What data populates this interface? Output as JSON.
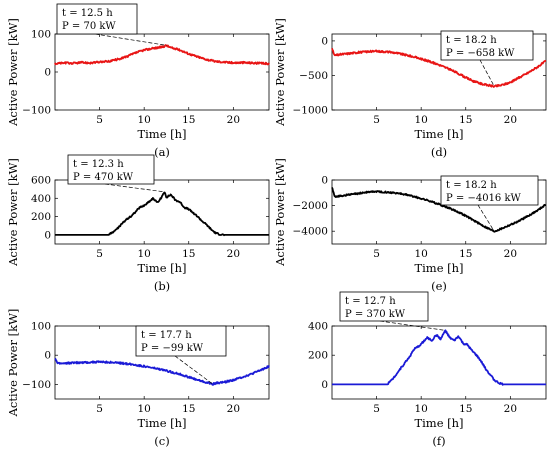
{
  "chart_data": [
    {
      "id": "a",
      "type": "line",
      "caption": "(a)",
      "color": "#e81515",
      "xlabel": "Time [h]",
      "ylabel": "Active Power [kW]",
      "xlim": [
        0,
        24
      ],
      "ylim": [
        -100,
        100
      ],
      "xticks": [
        5,
        10,
        15,
        20
      ],
      "yticks": [
        -100,
        0,
        100
      ],
      "x": [
        0,
        1,
        2,
        3,
        4,
        5,
        6,
        7,
        8,
        9,
        10,
        11,
        12,
        12.5,
        13,
        14,
        15,
        16,
        17,
        18,
        19,
        20,
        21,
        22,
        23,
        24
      ],
      "y": [
        22,
        24,
        23,
        25,
        24,
        26,
        28,
        33,
        40,
        50,
        58,
        62,
        66,
        70,
        64,
        58,
        48,
        40,
        33,
        28,
        26,
        24,
        25,
        24,
        23,
        22
      ],
      "annotation": {
        "t": "t = 12.5 h",
        "p": "P = 70 kW",
        "x": 12.5,
        "y": 70
      }
    },
    {
      "id": "b",
      "type": "line",
      "caption": "(b)",
      "color": "#000000",
      "xlabel": "Time [h]",
      "ylabel": "Active Power [kW]",
      "xlim": [
        0,
        24
      ],
      "ylim": [
        -100,
        600
      ],
      "xticks": [
        5,
        10,
        15,
        20
      ],
      "yticks": [
        0,
        200,
        400,
        600
      ],
      "x": [
        0,
        6,
        6.5,
        7,
        7.5,
        8,
        8.5,
        9,
        9.5,
        10,
        10.5,
        11,
        11.5,
        12,
        12.3,
        12.5,
        13,
        13.5,
        14,
        14.5,
        15,
        15.5,
        16,
        16.5,
        17,
        17.5,
        18,
        18.5,
        19,
        24
      ],
      "y": [
        0,
        0,
        30,
        70,
        120,
        170,
        200,
        250,
        300,
        320,
        360,
        400,
        350,
        420,
        470,
        410,
        440,
        380,
        360,
        300,
        280,
        240,
        200,
        150,
        110,
        60,
        20,
        5,
        0,
        0
      ],
      "annotation": {
        "t": "t = 12.3 h",
        "p": "P = 470 kW",
        "x": 12.3,
        "y": 470
      }
    },
    {
      "id": "c",
      "type": "line",
      "caption": "(c)",
      "color": "#1a1ad6",
      "xlabel": "Time [h]",
      "ylabel": "Active Power [kW]",
      "xlim": [
        0,
        24
      ],
      "ylim": [
        -150,
        100
      ],
      "xticks": [
        5,
        10,
        15,
        20
      ],
      "yticks": [
        -100,
        0,
        100
      ],
      "x": [
        0,
        0.3,
        1,
        2,
        3,
        4,
        5,
        6,
        7,
        8,
        9,
        10,
        11,
        12,
        13,
        14,
        15,
        16,
        17,
        17.7,
        18,
        19,
        20,
        21,
        22,
        23,
        24
      ],
      "y": [
        -10,
        -28,
        -28,
        -26,
        -25,
        -24,
        -23,
        -24,
        -26,
        -29,
        -33,
        -38,
        -44,
        -50,
        -57,
        -65,
        -75,
        -85,
        -94,
        -99,
        -96,
        -92,
        -85,
        -75,
        -65,
        -52,
        -38
      ],
      "annotation": {
        "t": "t = 17.7 h",
        "p": "P = −99 kW",
        "x": 17.7,
        "y": -99
      }
    },
    {
      "id": "d",
      "type": "line",
      "caption": "(d)",
      "color": "#e81515",
      "xlabel": "Time [h]",
      "ylabel": "Active Power [kW]",
      "xlim": [
        0,
        24
      ],
      "ylim": [
        -1000,
        100
      ],
      "xticks": [
        5,
        10,
        15,
        20
      ],
      "yticks": [
        -1000,
        -500,
        0
      ],
      "x": [
        0,
        0.3,
        1,
        2,
        3,
        4,
        5,
        6,
        7,
        8,
        9,
        10,
        11,
        12,
        13,
        14,
        15,
        16,
        17,
        18.2,
        19,
        20,
        21,
        22,
        23,
        24
      ],
      "y": [
        -120,
        -210,
        -195,
        -180,
        -165,
        -155,
        -150,
        -155,
        -170,
        -195,
        -225,
        -260,
        -300,
        -345,
        -400,
        -460,
        -530,
        -590,
        -630,
        -658,
        -640,
        -600,
        -530,
        -460,
        -380,
        -290
      ],
      "annotation": {
        "t": "t = 18.2 h",
        "p": "P = −658 kW",
        "x": 18.2,
        "y": -658
      }
    },
    {
      "id": "e",
      "type": "line",
      "caption": "(e)",
      "color": "#000000",
      "xlabel": "Time [h]",
      "ylabel": "Active Power [kW]",
      "xlim": [
        0,
        24
      ],
      "ylim": [
        -5000,
        0
      ],
      "xticks": [
        5,
        10,
        15,
        20
      ],
      "yticks": [
        -4000,
        -2000,
        0
      ],
      "x": [
        0,
        0.3,
        1,
        2,
        3,
        4,
        5,
        6,
        7,
        8,
        9,
        10,
        11,
        12,
        13,
        14,
        15,
        16,
        17,
        18.2,
        19,
        20,
        21,
        22,
        23,
        24
      ],
      "y": [
        -600,
        -1300,
        -1250,
        -1150,
        -1050,
        -950,
        -900,
        -950,
        -1000,
        -1100,
        -1250,
        -1450,
        -1650,
        -1900,
        -2150,
        -2450,
        -2800,
        -3200,
        -3600,
        -4016,
        -3800,
        -3500,
        -3200,
        -2800,
        -2400,
        -1900
      ],
      "annotation": {
        "t": "t = 18.2 h",
        "p": "P = −4016 kW",
        "x": 18.2,
        "y": -4016
      }
    },
    {
      "id": "f",
      "type": "line",
      "caption": "(f)",
      "color": "#1a1ad6",
      "xlabel": "Time [h]",
      "ylabel": "",
      "xlim": [
        0,
        24
      ],
      "ylim": [
        -100,
        400
      ],
      "xticks": [
        5,
        10,
        15,
        20
      ],
      "yticks": [
        0,
        200,
        400
      ],
      "x": [
        0,
        6.2,
        6.7,
        7.2,
        7.7,
        8.2,
        8.7,
        9.2,
        9.7,
        10.2,
        10.7,
        11.2,
        11.7,
        12.2,
        12.7,
        13.2,
        13.7,
        14.2,
        14.7,
        15.2,
        15.7,
        16.2,
        16.7,
        17.2,
        17.7,
        18.2,
        18.7,
        19.2,
        24
      ],
      "y": [
        0,
        0,
        30,
        70,
        110,
        150,
        190,
        240,
        260,
        290,
        320,
        300,
        340,
        310,
        370,
        320,
        300,
        330,
        280,
        270,
        230,
        200,
        160,
        110,
        70,
        30,
        10,
        0,
        0
      ],
      "annotation": {
        "t": "t = 12.7 h",
        "p": "P = 370 kW",
        "x": 12.7,
        "y": 370
      }
    }
  ]
}
